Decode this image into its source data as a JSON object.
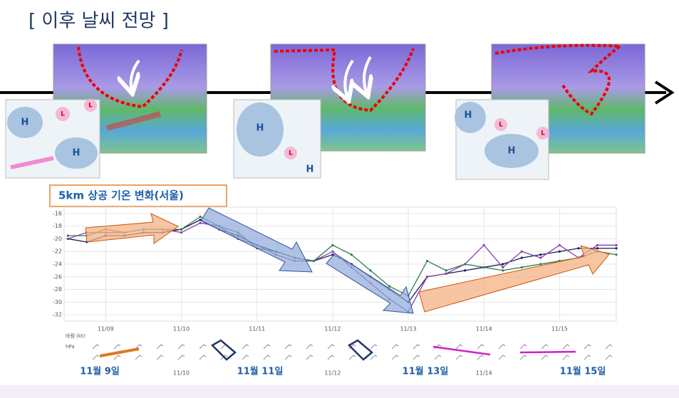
{
  "title": "[ 이후 날씨 전망 ]",
  "maps": [
    {
      "labels": [
        "H",
        "L",
        "L",
        "H"
      ]
    },
    {
      "labels": [
        "H",
        "L",
        "H"
      ]
    },
    {
      "labels": [
        "H",
        "L",
        "L",
        "H"
      ]
    }
  ],
  "chart_label": "5km 상공 기온 변화(서울)",
  "wind_label": "바람 (kt)",
  "pressure_label": "hPa",
  "annotations": [
    "11월 9일",
    "11월 11일",
    "11월 13일",
    "11월 15일"
  ],
  "chart_data": {
    "type": "line",
    "x": [
      -0.5,
      -0.25,
      0,
      0.25,
      0.5,
      0.75,
      1,
      1.25,
      1.5,
      1.75,
      2,
      2.25,
      2.5,
      2.75,
      3,
      3.25,
      3.5,
      3.75,
      4,
      4.25,
      4.5,
      4.75,
      5,
      5.25,
      5.5,
      5.75,
      6,
      6.25,
      6.5,
      6.75
    ],
    "xlim": [
      -0.55,
      6.75
    ],
    "xticks": [
      {
        "value": 0,
        "label": "11/09"
      },
      {
        "value": 1,
        "label": "11/10"
      },
      {
        "value": 2,
        "label": "11/11"
      },
      {
        "value": 3,
        "label": "11/12"
      },
      {
        "value": 4,
        "label": "11/13"
      },
      {
        "value": 5,
        "label": "11/14"
      },
      {
        "value": 6,
        "label": "11/15"
      }
    ],
    "ylim": [
      -33,
      -15
    ],
    "yticks": [
      -32,
      -30,
      -28,
      -26,
      -24,
      -22,
      -20,
      -18,
      -16
    ],
    "grid": true,
    "series": [
      {
        "color": "#1a1a5e",
        "values": [
          -20,
          -20.5,
          -19.5,
          -19.5,
          -19,
          -19,
          -18.5,
          -17,
          -18.5,
          -19.5,
          -21,
          -22,
          -23,
          -23.5,
          -22.5,
          -24,
          -26,
          -28,
          -30,
          -26,
          -25.5,
          -25,
          -24.5,
          -24,
          -23,
          -22.5,
          -22,
          -21.5,
          -21.5,
          -21.5
        ]
      },
      {
        "color": "#8b3fa8",
        "values": [
          -20,
          -19,
          -19,
          -19,
          -18.5,
          -18.5,
          -19,
          -17.5,
          -18,
          -20,
          -21,
          -22.5,
          -23.5,
          -23.5,
          -22,
          -24.5,
          -27,
          -29.5,
          -31.5,
          -26,
          -25.5,
          -24,
          -21,
          -24.5,
          -22,
          -23,
          -21,
          -23,
          -21,
          -21
        ]
      },
      {
        "color": "#2e7d4f",
        "values": [
          -19.5,
          -19.5,
          -18.5,
          -19,
          -18.5,
          -18.5,
          -18.5,
          -16.5,
          -18,
          -19,
          -21.5,
          -22,
          -23,
          -23.5,
          -21,
          -22.5,
          -25,
          -27.5,
          -29,
          -23.5,
          -25,
          -24,
          -24.5,
          -25,
          -24.5,
          -24,
          -23.5,
          -23,
          -22,
          -22.5
        ]
      }
    ]
  }
}
